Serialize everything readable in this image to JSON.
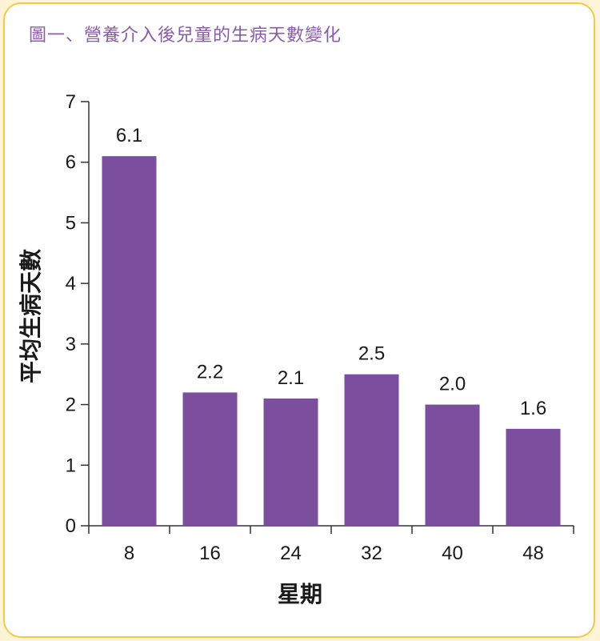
{
  "title": "圖一、營養介入後兒童的生病天數變化",
  "chart_data": {
    "type": "bar",
    "title": "圖一、營養介入後兒童的生病天數變化",
    "xlabel": "星期",
    "ylabel": "平均生病天數",
    "categories": [
      "8",
      "16",
      "24",
      "32",
      "40",
      "48"
    ],
    "values": [
      6.1,
      2.2,
      2.1,
      2.5,
      2.0,
      1.6
    ],
    "value_labels": [
      "6.1",
      "2.2",
      "2.1",
      "2.5",
      "2.0",
      "1.6"
    ],
    "ylim": [
      0,
      7
    ],
    "yticks": [
      "0",
      "1",
      "2",
      "3",
      "4",
      "5",
      "6",
      "7"
    ],
    "grid": false,
    "bar_color": "#7b4f9d"
  }
}
